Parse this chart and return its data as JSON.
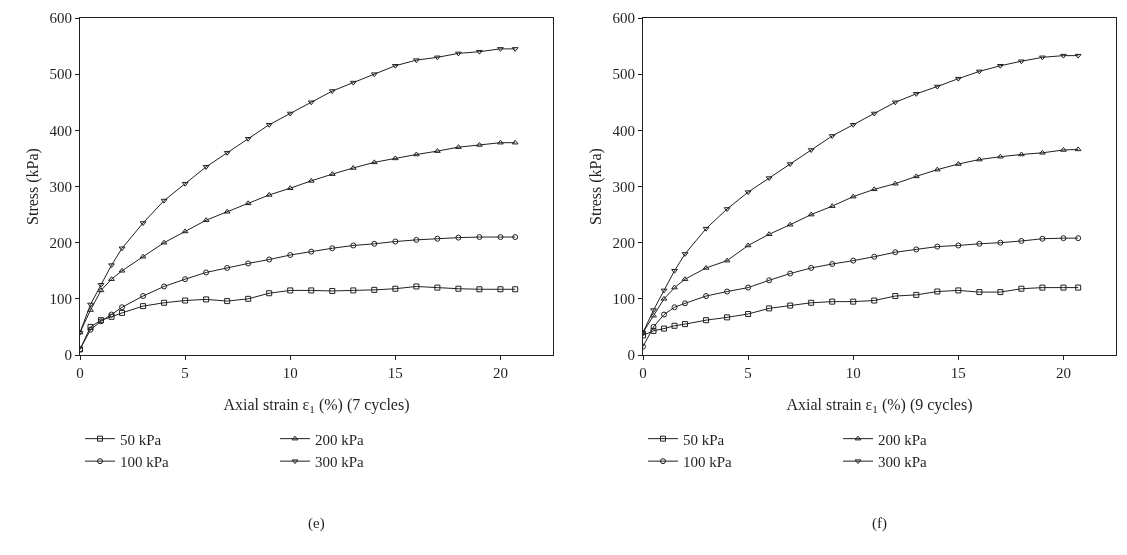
{
  "chart_data": [
    {
      "type": "line",
      "xlabel": "Axial strain ε$_{1}$ (%) (7 cycles)",
      "ylabel": "Stress (kPa)",
      "annotations": [
        "(e)"
      ],
      "xlim": [
        0,
        22.5
      ],
      "xticks": [
        0,
        5,
        10,
        15,
        20
      ],
      "ylim": [
        0,
        600
      ],
      "yticks": [
        0,
        100,
        200,
        300,
        400,
        500,
        600
      ],
      "grid": false,
      "legend": "bottom",
      "line_style": "solid",
      "x": [
        0,
        0.5,
        1,
        1.5,
        2,
        3,
        4,
        5,
        6,
        7,
        8,
        9,
        10,
        11,
        12,
        13,
        14,
        15,
        16,
        17,
        18,
        19,
        20,
        20.7
      ],
      "series": [
        {
          "name": "50 kPa",
          "color": "#231f20",
          "marker": "square",
          "values": [
            10,
            50,
            62,
            68,
            75,
            87,
            93,
            97,
            99,
            96,
            100,
            110,
            115,
            115,
            114,
            115,
            116,
            118,
            122,
            120,
            118,
            117,
            117,
            117
          ]
        },
        {
          "name": "100 kPa",
          "color": "#231f20",
          "marker": "circle",
          "values": [
            10,
            45,
            60,
            72,
            85,
            105,
            122,
            135,
            147,
            155,
            163,
            170,
            178,
            184,
            190,
            195,
            198,
            202,
            205,
            207,
            209,
            210,
            210,
            210
          ]
        },
        {
          "name": "200 kPa",
          "color": "#231f20",
          "marker": "triangle",
          "values": [
            40,
            80,
            115,
            135,
            150,
            175,
            200,
            220,
            240,
            255,
            270,
            285,
            297,
            310,
            322,
            333,
            343,
            350,
            357,
            363,
            370,
            374,
            378,
            378
          ]
        },
        {
          "name": "300 kPa",
          "color": "#231f20",
          "marker": "triangle-down",
          "values": [
            40,
            90,
            125,
            160,
            190,
            235,
            275,
            305,
            335,
            360,
            385,
            410,
            430,
            450,
            470,
            485,
            500,
            515,
            525,
            530,
            537,
            540,
            545,
            545
          ]
        }
      ]
    },
    {
      "type": "line",
      "xlabel": "Axial strain ε$_{1}$ (%) (9 cycles)",
      "ylabel": "Stress (kPa)",
      "annotations": [
        "(f)"
      ],
      "xlim": [
        0,
        22.5
      ],
      "xticks": [
        0,
        5,
        10,
        15,
        20
      ],
      "ylim": [
        0,
        600
      ],
      "yticks": [
        0,
        100,
        200,
        300,
        400,
        500,
        600
      ],
      "grid": false,
      "legend": "bottom",
      "line_style": "solid",
      "x": [
        0,
        0.5,
        1,
        1.5,
        2,
        3,
        4,
        5,
        6,
        7,
        8,
        9,
        10,
        11,
        12,
        13,
        14,
        15,
        16,
        17,
        18,
        19,
        20,
        20.7
      ],
      "series": [
        {
          "name": "50 kPa",
          "color": "#231f20",
          "marker": "square",
          "values": [
            35,
            43,
            47,
            52,
            55,
            62,
            67,
            73,
            83,
            88,
            93,
            95,
            95,
            97,
            105,
            107,
            113,
            115,
            112,
            112,
            118,
            120,
            120,
            120
          ]
        },
        {
          "name": "100 kPa",
          "color": "#231f20",
          "marker": "circle",
          "values": [
            15,
            50,
            72,
            85,
            92,
            105,
            113,
            120,
            133,
            145,
            155,
            162,
            168,
            175,
            183,
            188,
            193,
            195,
            198,
            200,
            203,
            207,
            208,
            208
          ]
        },
        {
          "name": "200 kPa",
          "color": "#231f20",
          "marker": "triangle",
          "values": [
            40,
            70,
            100,
            120,
            135,
            155,
            168,
            195,
            215,
            232,
            250,
            265,
            282,
            295,
            305,
            318,
            330,
            340,
            348,
            353,
            357,
            360,
            365,
            366
          ]
        },
        {
          "name": "300 kPa",
          "color": "#231f20",
          "marker": "triangle-down",
          "values": [
            40,
            80,
            115,
            150,
            180,
            225,
            260,
            290,
            315,
            340,
            365,
            390,
            410,
            430,
            450,
            465,
            478,
            492,
            505,
            515,
            523,
            530,
            533,
            533
          ]
        }
      ]
    }
  ]
}
